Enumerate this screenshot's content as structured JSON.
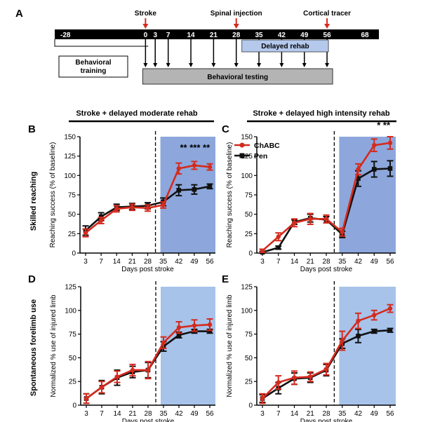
{
  "timeline": {
    "letter": "A",
    "bar_start": -28,
    "bar_end": 68,
    "ticks": [
      -28,
      0,
      3,
      7,
      14,
      21,
      28,
      35,
      42,
      49,
      56,
      68
    ],
    "tick_labels": [
      "-28",
      "0",
      "3",
      "7",
      "14",
      "21",
      "28",
      "35",
      "42",
      "49",
      "56",
      "68"
    ],
    "events": [
      {
        "label": "Stroke",
        "day": 0
      },
      {
        "label": "Spinal injection",
        "day": 28
      },
      {
        "label": "Cortical tracer",
        "day": 56
      }
    ],
    "test_days": [
      0,
      3,
      7,
      14,
      21,
      28,
      35,
      42,
      49,
      56
    ],
    "delayed_rehab": {
      "label": "Delayed rehab",
      "start": 28,
      "end": 56
    },
    "behavioral_training": {
      "label": "Behavioral training",
      "start": -28,
      "end": 0
    },
    "behavioral_testing": {
      "label": "Behavioral testing",
      "start": 0,
      "end": 56
    }
  },
  "headers": {
    "left": "Stroke + delayed moderate rehab",
    "right": "Stroke + delayed  high intensity rehab"
  },
  "row_labels": {
    "top": "Skilled reaching",
    "bottom": "Spontaneous forelimb use"
  },
  "legend": {
    "chabc": "ChABC",
    "pen": "Pen"
  },
  "colors": {
    "chabc": "#d42b1e",
    "pen": "#111111",
    "rehab_dark": "#8da7dc",
    "rehab_light": "#a7c3ea",
    "arrow": "#d42b1e",
    "gray_box": "#b4b4b4",
    "timeline_box": "#b4c9ec"
  },
  "chart_data": [
    {
      "type": "line",
      "letter": "B",
      "xlabel": "Days post stroke",
      "ylabel": "Reaching success (% of baseline)",
      "categories": [
        "3",
        "7",
        "14",
        "21",
        "28",
        "35",
        "42",
        "49",
        "56"
      ],
      "ylim": [
        0,
        150
      ],
      "yticks": [
        0,
        25,
        50,
        75,
        100,
        125,
        150
      ],
      "rehab_from_index": 5,
      "shade": "dark",
      "series": [
        {
          "name": "Pen",
          "values": [
            29,
            47,
            59,
            60,
            61,
            66,
            81,
            82,
            86
          ],
          "errors": [
            6,
            5,
            4,
            4,
            4,
            5,
            7,
            6,
            3
          ]
        },
        {
          "name": "ChABC",
          "values": [
            26,
            42,
            57,
            59,
            58,
            62,
            109,
            113,
            111
          ],
          "errors": [
            5,
            4,
            4,
            4,
            4,
            4,
            7,
            5,
            4
          ]
        }
      ],
      "significance": "** *** **"
    },
    {
      "type": "line",
      "letter": "C",
      "xlabel": "Days post stroke",
      "ylabel": "Reaching success (% of baseline)",
      "categories": [
        "3",
        "7",
        "14",
        "21",
        "28",
        "35",
        "42",
        "49",
        "56"
      ],
      "ylim": [
        0,
        150
      ],
      "yticks": [
        0,
        25,
        50,
        75,
        100,
        125,
        150
      ],
      "rehab_from_index": 5,
      "shade": "dark",
      "series": [
        {
          "name": "Pen",
          "values": [
            1,
            7,
            40,
            45,
            43,
            24,
            96,
            108,
            109
          ],
          "errors": [
            1,
            2,
            3,
            5,
            4,
            4,
            10,
            10,
            10
          ]
        },
        {
          "name": "ChABC",
          "values": [
            3,
            21,
            39,
            44,
            44,
            27,
            108,
            139,
            142
          ],
          "errors": [
            2,
            5,
            5,
            7,
            5,
            5,
            7,
            8,
            8
          ]
        }
      ],
      "significance": "* **"
    },
    {
      "type": "line",
      "letter": "D",
      "xlabel": "Days post stroke",
      "ylabel": "Normalized % use of injured limb",
      "categories": [
        "3",
        "7",
        "14",
        "21",
        "28",
        "35",
        "42",
        "49",
        "56"
      ],
      "ylim": [
        0,
        125
      ],
      "yticks": [
        0,
        25,
        50,
        75,
        100,
        125
      ],
      "rehab_from_index": 5,
      "shade": "light",
      "series": [
        {
          "name": "Pen",
          "values": [
            7,
            19,
            29,
            35,
            37,
            62,
            74,
            78,
            78
          ],
          "errors": [
            5,
            7,
            8,
            6,
            8,
            5,
            3,
            2,
            2
          ]
        },
        {
          "name": "ChABC",
          "values": [
            7,
            19,
            30,
            37,
            37,
            66,
            82,
            84,
            85
          ],
          "errors": [
            5,
            6,
            6,
            6,
            9,
            6,
            6,
            6,
            6
          ]
        }
      ]
    },
    {
      "type": "line",
      "letter": "E",
      "xlabel": "Days post stroke",
      "ylabel": "Normalized % use of injured limb",
      "categories": [
        "3",
        "7",
        "14",
        "21",
        "28",
        "35",
        "42",
        "49",
        "56"
      ],
      "ylim": [
        0,
        125
      ],
      "yticks": [
        0,
        25,
        50,
        75,
        100,
        125
      ],
      "rehab_from_index": 5,
      "shade": "light",
      "series": [
        {
          "name": "Pen",
          "values": [
            7,
            18,
            28,
            29,
            37,
            65,
            73,
            78,
            79
          ],
          "errors": [
            4,
            6,
            6,
            5,
            6,
            5,
            7,
            2,
            2
          ]
        },
        {
          "name": "ChABC",
          "values": [
            7,
            24,
            29,
            30,
            38,
            68,
            89,
            95,
            102
          ],
          "errors": [
            5,
            7,
            7,
            5,
            6,
            10,
            8,
            5,
            4
          ]
        }
      ]
    }
  ]
}
